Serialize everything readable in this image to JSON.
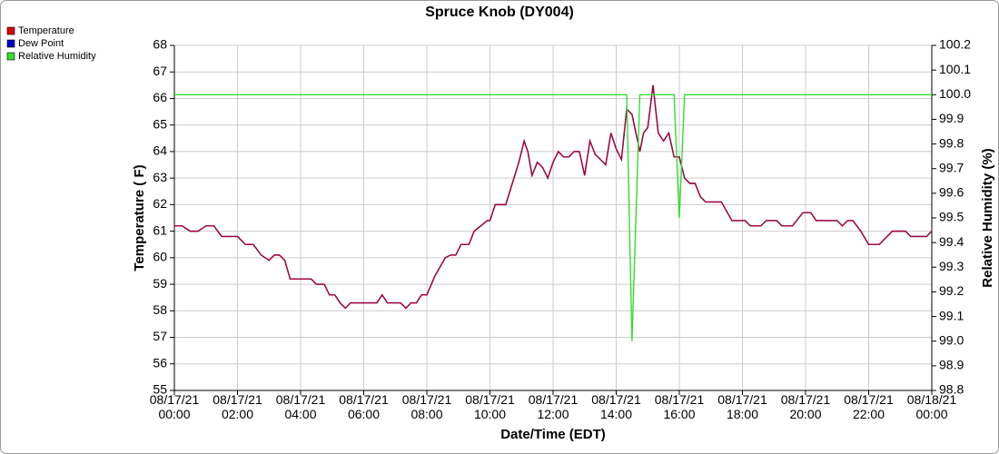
{
  "chart_data": {
    "type": "line",
    "title": "Spruce Knob (DY004)",
    "x_label": "Date/Time (EDT)",
    "y_label": "Temperature ( F)",
    "y2_label": "Relative Humidity (%)",
    "x": [
      "08/17/21 00:00",
      "08/17/21 00:15",
      "08/17/21 00:30",
      "08/17/21 00:45",
      "08/17/21 01:00",
      "08/17/21 01:15",
      "08/17/21 01:30",
      "08/17/21 02:00",
      "08/17/21 02:15",
      "08/17/21 02:30",
      "08/17/21 02:45",
      "08/17/21 03:00",
      "08/17/21 03:10",
      "08/17/21 03:20",
      "08/17/21 03:30",
      "08/17/21 03:40",
      "08/17/21 04:00",
      "08/17/21 04:20",
      "08/17/21 04:30",
      "08/17/21 04:45",
      "08/17/21 04:55",
      "08/17/21 05:05",
      "08/17/21 05:15",
      "08/17/21 05:25",
      "08/17/21 05:35",
      "08/17/21 06:00",
      "08/17/21 06:25",
      "08/17/21 06:35",
      "08/17/21 06:45",
      "08/17/21 07:10",
      "08/17/21 07:20",
      "08/17/21 07:30",
      "08/17/21 07:40",
      "08/17/21 07:50",
      "08/17/21 08:00",
      "08/17/21 08:15",
      "08/17/21 08:35",
      "08/17/21 08:45",
      "08/17/21 08:55",
      "08/17/21 09:05",
      "08/17/21 09:20",
      "08/17/21 09:30",
      "08/17/21 09:55",
      "08/17/21 10:00",
      "08/17/21 10:10",
      "08/17/21 10:30",
      "08/17/21 10:55",
      "08/17/21 11:05",
      "08/17/21 11:12",
      "08/17/21 11:20",
      "08/17/21 11:30",
      "08/17/21 11:40",
      "08/17/21 11:50",
      "08/17/21 12:00",
      "08/17/21 12:10",
      "08/17/21 12:20",
      "08/17/21 12:30",
      "08/17/21 12:40",
      "08/17/21 12:50",
      "08/17/21 13:00",
      "08/17/21 13:10",
      "08/17/21 13:20",
      "08/17/21 13:30",
      "08/17/21 13:40",
      "08/17/21 13:50",
      "08/17/21 14:00",
      "08/17/21 14:10",
      "08/17/21 14:20",
      "08/17/21 14:30",
      "08/17/21 14:45",
      "08/17/21 14:52",
      "08/17/21 15:00",
      "08/17/21 15:10",
      "08/17/21 15:20",
      "08/17/21 15:30",
      "08/17/21 15:40",
      "08/17/21 15:50",
      "08/17/21 16:00",
      "08/17/21 16:10",
      "08/17/21 16:20",
      "08/17/21 16:30",
      "08/17/21 16:40",
      "08/17/21 16:50",
      "08/17/21 17:20",
      "08/17/21 17:40",
      "08/17/21 18:05",
      "08/17/21 18:15",
      "08/17/21 18:35",
      "08/17/21 18:45",
      "08/17/21 19:05",
      "08/17/21 19:15",
      "08/17/21 19:35",
      "08/17/21 19:55",
      "08/17/21 20:10",
      "08/17/21 20:20",
      "08/17/21 21:00",
      "08/17/21 21:10",
      "08/17/21 21:20",
      "08/17/21 21:30",
      "08/17/21 21:45",
      "08/17/21 22:00",
      "08/17/21 22:20",
      "08/17/21 22:35",
      "08/17/21 22:45",
      "08/17/21 23:10",
      "08/17/21 23:20",
      "08/17/21 23:50",
      "08/18/21 00:00"
    ],
    "series": [
      {
        "name": "Dew Point",
        "color": "#0000cc",
        "values": [
          61.2,
          61.2,
          61.0,
          61.0,
          61.2,
          61.2,
          60.8,
          60.8,
          60.5,
          60.5,
          60.1,
          59.9,
          60.1,
          60.1,
          59.9,
          59.2,
          59.2,
          59.2,
          59.0,
          59.0,
          58.6,
          58.6,
          58.3,
          58.1,
          58.3,
          58.3,
          58.3,
          58.6,
          58.3,
          58.3,
          58.1,
          58.3,
          58.3,
          58.6,
          58.6,
          59.3,
          60.0,
          60.1,
          60.1,
          60.5,
          60.5,
          61.0,
          61.4,
          61.4,
          62.0,
          62.0,
          63.6,
          64.4,
          64.0,
          63.1,
          63.6,
          63.4,
          63.0,
          63.6,
          64.0,
          63.8,
          63.8,
          64.0,
          64.0,
          63.1,
          64.4,
          63.9,
          63.7,
          63.5,
          64.7,
          64.1,
          63.7,
          65.6,
          65.4,
          64.0,
          64.7,
          64.9,
          66.5,
          64.7,
          64.4,
          64.7,
          63.8,
          63.8,
          63.0,
          62.8,
          62.8,
          62.3,
          62.1,
          62.1,
          61.4,
          61.4,
          61.2,
          61.2,
          61.4,
          61.4,
          61.2,
          61.2,
          61.7,
          61.7,
          61.4,
          61.4,
          61.2,
          61.4,
          61.4,
          61.0,
          60.5,
          60.5,
          60.8,
          61.0,
          61.0,
          60.8,
          60.8,
          61.0
        ]
      },
      {
        "name": "Temperature",
        "color": "#dd0000",
        "values": [
          61.2,
          61.2,
          61.0,
          61.0,
          61.2,
          61.2,
          60.8,
          60.8,
          60.5,
          60.5,
          60.1,
          59.9,
          60.1,
          60.1,
          59.9,
          59.2,
          59.2,
          59.2,
          59.0,
          59.0,
          58.6,
          58.6,
          58.3,
          58.1,
          58.3,
          58.3,
          58.3,
          58.6,
          58.3,
          58.3,
          58.1,
          58.3,
          58.3,
          58.6,
          58.6,
          59.3,
          60.0,
          60.1,
          60.1,
          60.5,
          60.5,
          61.0,
          61.4,
          61.4,
          62.0,
          62.0,
          63.6,
          64.4,
          64.0,
          63.1,
          63.6,
          63.4,
          63.0,
          63.6,
          64.0,
          63.8,
          63.8,
          64.0,
          64.0,
          63.1,
          64.4,
          63.9,
          63.7,
          63.5,
          64.7,
          64.1,
          63.7,
          65.6,
          65.4,
          64.0,
          64.7,
          64.9,
          66.5,
          64.7,
          64.4,
          64.7,
          63.8,
          63.8,
          63.0,
          62.8,
          62.8,
          62.3,
          62.1,
          62.1,
          61.4,
          61.4,
          61.2,
          61.2,
          61.4,
          61.4,
          61.2,
          61.2,
          61.7,
          61.7,
          61.4,
          61.4,
          61.2,
          61.4,
          61.4,
          61.0,
          60.5,
          60.5,
          60.8,
          61.0,
          61.0,
          60.8,
          60.8,
          61.0
        ]
      },
      {
        "name": "Relative Humidity",
        "color": "#33dd33",
        "axis": "y2",
        "values": [
          100,
          100,
          100,
          100,
          100,
          100,
          100,
          100,
          100,
          100,
          100,
          100,
          100,
          100,
          100,
          100,
          100,
          100,
          100,
          100,
          100,
          100,
          100,
          100,
          100,
          100,
          100,
          100,
          100,
          100,
          100,
          100,
          100,
          100,
          100,
          100,
          100,
          100,
          100,
          100,
          100,
          100,
          100,
          100,
          100,
          100,
          100,
          100,
          100,
          100,
          100,
          100,
          100,
          100,
          100,
          100,
          100,
          100,
          100,
          100,
          100,
          100,
          100,
          100,
          100,
          100,
          100,
          100,
          99.0,
          100,
          100,
          100,
          100,
          100,
          100,
          100,
          100,
          99.5,
          100,
          100,
          100,
          100,
          100,
          100,
          100,
          100,
          100,
          100,
          100,
          100,
          100,
          100,
          100,
          100,
          100,
          100,
          100,
          100,
          100,
          100,
          100,
          100,
          100,
          100,
          100,
          100,
          100,
          100
        ]
      }
    ],
    "legend_order": [
      "Temperature",
      "Dew Point",
      "Relative Humidity"
    ],
    "xlim": [
      "08/17/21 00:00",
      "08/18/21 00:00"
    ],
    "xticks": [
      {
        "value": "08/17/21 00:00",
        "label": "08/17/21\n00:00"
      },
      {
        "value": "08/17/21 02:00",
        "label": "08/17/21\n02:00"
      },
      {
        "value": "08/17/21 04:00",
        "label": "08/17/21\n04:00"
      },
      {
        "value": "08/17/21 06:00",
        "label": "08/17/21\n06:00"
      },
      {
        "value": "08/17/21 08:00",
        "label": "08/17/21\n08:00"
      },
      {
        "value": "08/17/21 10:00",
        "label": "08/17/21\n10:00"
      },
      {
        "value": "08/17/21 12:00",
        "label": "08/17/21\n12:00"
      },
      {
        "value": "08/17/21 14:00",
        "label": "08/17/21\n14:00"
      },
      {
        "value": "08/17/21 16:00",
        "label": "08/17/21\n16:00"
      },
      {
        "value": "08/17/21 18:00",
        "label": "08/17/21\n18:00"
      },
      {
        "value": "08/17/21 20:00",
        "label": "08/17/21\n20:00"
      },
      {
        "value": "08/17/21 22:00",
        "label": "08/17/21\n22:00"
      },
      {
        "value": "08/18/21 00:00",
        "label": "08/18/21\n00:00"
      }
    ],
    "ylim": [
      55,
      68
    ],
    "yticks": [
      55,
      56,
      57,
      58,
      59,
      60,
      61,
      62,
      63,
      64,
      65,
      66,
      67,
      68
    ],
    "y2lim": [
      98.8,
      100.2
    ],
    "y2ticks": [
      98.8,
      98.9,
      {
        "value": 99,
        "label": "99.0"
      },
      99.1,
      99.2,
      99.3,
      99.4,
      99.5,
      99.6,
      99.7,
      99.8,
      99.9,
      {
        "value": 100,
        "label": "100.0"
      },
      100.1,
      100.2
    ],
    "grid": true,
    "legend_position": "top-left"
  }
}
